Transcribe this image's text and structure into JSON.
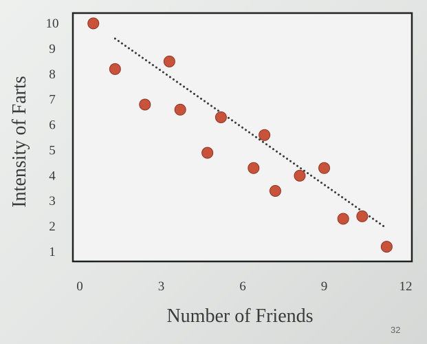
{
  "slide": {
    "page_number": "32"
  },
  "colors": {
    "point_fill": "#c9523b",
    "point_stroke": "#8f3322",
    "trendline": "#3d3d3d",
    "axes": "#222222"
  },
  "chart_data": {
    "type": "scatter",
    "title": "",
    "xlabel": "Number of Friends",
    "ylabel": "Intensity of Farts",
    "xlim": [
      0,
      12
    ],
    "ylim": [
      0,
      10
    ],
    "x_ticks": [
      0,
      3,
      6,
      9,
      12
    ],
    "y_ticks": [
      1,
      2,
      3,
      4,
      5,
      6,
      7,
      8,
      9,
      10
    ],
    "grid": false,
    "legend": "none",
    "points": [
      {
        "x": 0.5,
        "y": 10.0
      },
      {
        "x": 1.3,
        "y": 8.2
      },
      {
        "x": 2.4,
        "y": 6.8
      },
      {
        "x": 3.3,
        "y": 8.5
      },
      {
        "x": 3.7,
        "y": 6.6
      },
      {
        "x": 4.7,
        "y": 4.9
      },
      {
        "x": 5.2,
        "y": 6.3
      },
      {
        "x": 6.4,
        "y": 4.3
      },
      {
        "x": 6.8,
        "y": 5.6
      },
      {
        "x": 7.2,
        "y": 3.4
      },
      {
        "x": 8.1,
        "y": 4.0
      },
      {
        "x": 9.0,
        "y": 4.3
      },
      {
        "x": 9.7,
        "y": 2.3
      },
      {
        "x": 10.4,
        "y": 2.4
      },
      {
        "x": 11.3,
        "y": 1.2
      }
    ],
    "trendline": {
      "style": "dotted",
      "from": {
        "x": 1.3,
        "y": 9.4
      },
      "to": {
        "x": 11.2,
        "y": 2.0
      }
    }
  }
}
